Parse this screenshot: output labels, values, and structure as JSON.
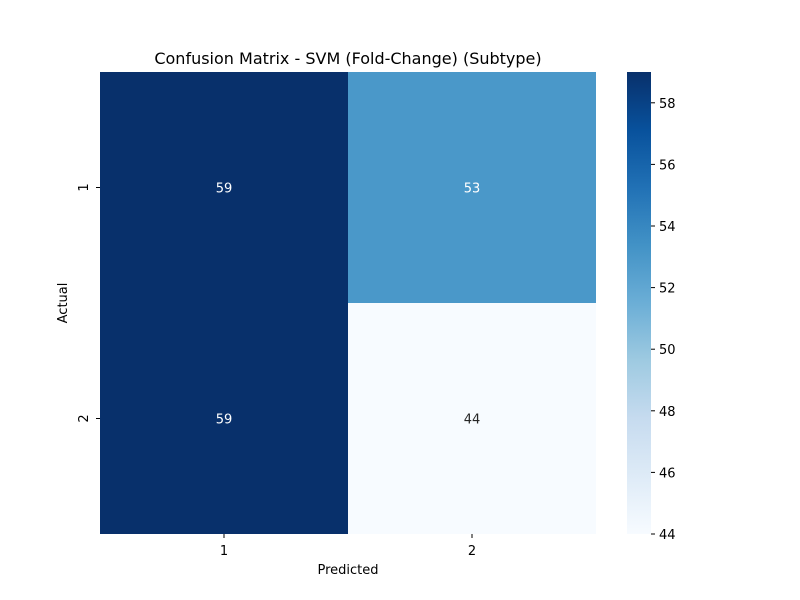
{
  "chart_data": {
    "type": "heatmap",
    "title": "Confusion Matrix - SVM (Fold-Change) (Subtype)",
    "xlabel": "Predicted",
    "ylabel": "Actual",
    "x_categories": [
      "1",
      "2"
    ],
    "y_categories": [
      "1",
      "2"
    ],
    "values": [
      [
        59,
        53
      ],
      [
        59,
        44
      ]
    ],
    "colorbar": {
      "colormap": "Blues",
      "min": 44,
      "max": 59,
      "ticks": [
        44,
        46,
        48,
        50,
        52,
        54,
        56,
        58
      ]
    },
    "grid": false
  }
}
